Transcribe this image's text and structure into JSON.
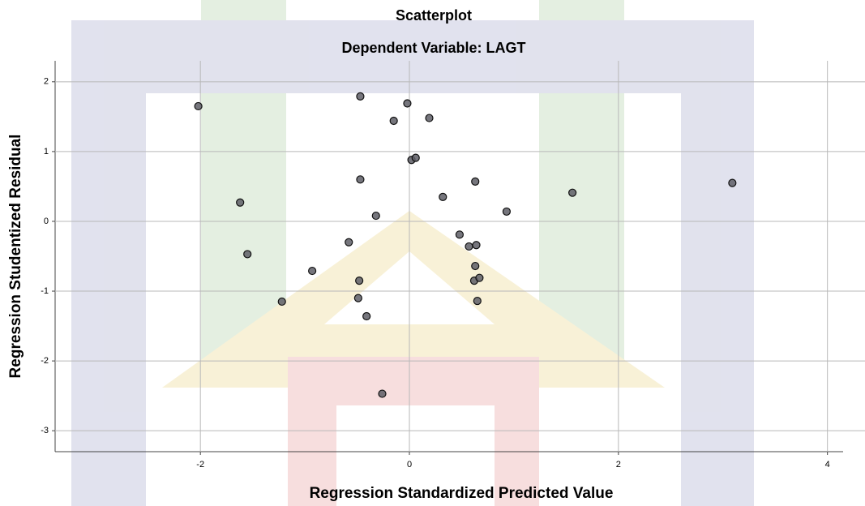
{
  "chart_data": {
    "type": "scatter",
    "title": "Scatterplot",
    "subtitle": "Dependent Variable: LAGT",
    "x_label": "Regression Standardized Predicted Value",
    "y_label": "Regression Studentized Residual",
    "x": [
      -2.02,
      -0.47,
      -0.02,
      -0.15,
      0.19,
      0.02,
      0.06,
      -0.47,
      0.63,
      0.32,
      -1.62,
      1.56,
      3.09,
      0.93,
      -0.32,
      0.48,
      -0.58,
      0.57,
      0.64,
      -1.55,
      0.63,
      -0.93,
      -0.48,
      0.62,
      0.67,
      -0.49,
      -1.22,
      0.65,
      -0.41,
      -0.26
    ],
    "values": [
      1.65,
      1.79,
      1.69,
      1.44,
      1.48,
      0.88,
      0.91,
      0.6,
      0.57,
      0.35,
      0.27,
      0.41,
      0.55,
      0.14,
      0.08,
      -0.19,
      -0.3,
      -0.36,
      -0.34,
      -0.47,
      -0.64,
      -0.71,
      -0.85,
      -0.85,
      -0.81,
      -1.1,
      -1.15,
      -1.14,
      -1.36,
      -2.47
    ],
    "color": "#5e5e66",
    "xlim": [
      -3.39,
      4.15
    ],
    "ylim": [
      -3.3,
      2.3
    ],
    "xticks": [
      -2,
      0,
      2,
      4
    ],
    "yticks": [
      -3,
      -2,
      -1,
      0,
      1,
      2
    ],
    "grid": true
  }
}
